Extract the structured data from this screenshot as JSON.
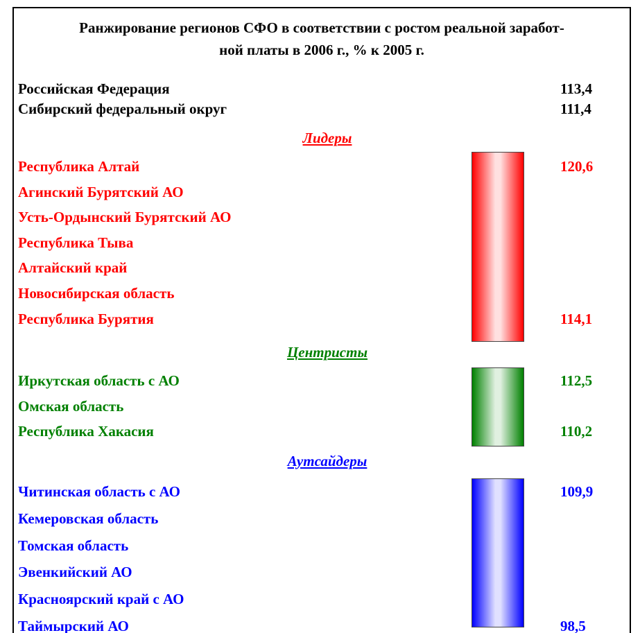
{
  "header": {
    "title_lines": [
      "Ранжирование регионов СФО в соответствии с ростом реальной заработ-",
      "ной платы в 2006 г., % к 2005 г."
    ]
  },
  "summary": [
    {
      "name": "Российская Федерация",
      "value": "113,4"
    },
    {
      "name": "Сибирский федеральный округ",
      "value": "111,4"
    }
  ],
  "groups": [
    {
      "heading": "Лидеры",
      "color": "#ff0000",
      "light": "#ffe0e0",
      "rows": [
        {
          "name": "Республика Алтай",
          "value": "120,6"
        },
        {
          "name": "Агинский Бурятский АО",
          "value": null
        },
        {
          "name": "Усть-Ордынский Бурятский АО",
          "value": null
        },
        {
          "name": "Республика Тыва",
          "value": null
        },
        {
          "name": "Алтайский край",
          "value": null
        },
        {
          "name": "Новосибирская область",
          "value": null
        },
        {
          "name": "Республика Бурятия",
          "value": "114,1"
        }
      ]
    },
    {
      "heading": "Центристы",
      "color": "#008000",
      "light": "#e0f0e0",
      "rows": [
        {
          "name": "Иркутская область с АО",
          "value": "112,5"
        },
        {
          "name": "Омская область",
          "value": null
        },
        {
          "name": "Республика Хакасия",
          "value": "110,2"
        }
      ]
    },
    {
      "heading": "Аутсайдеры",
      "color": "#0000ff",
      "light": "#e0e0ff",
      "rows": [
        {
          "name": "Читинская область с АО",
          "value": "109,9"
        },
        {
          "name": "Кемеровская область",
          "value": null
        },
        {
          "name": "Томская область",
          "value": null
        },
        {
          "name": "Эвенкийский АО",
          "value": null
        },
        {
          "name": "Красноярский край с АО",
          "value": null
        },
        {
          "name": "Таймырский АО",
          "value": "98,5"
        }
      ]
    }
  ]
}
